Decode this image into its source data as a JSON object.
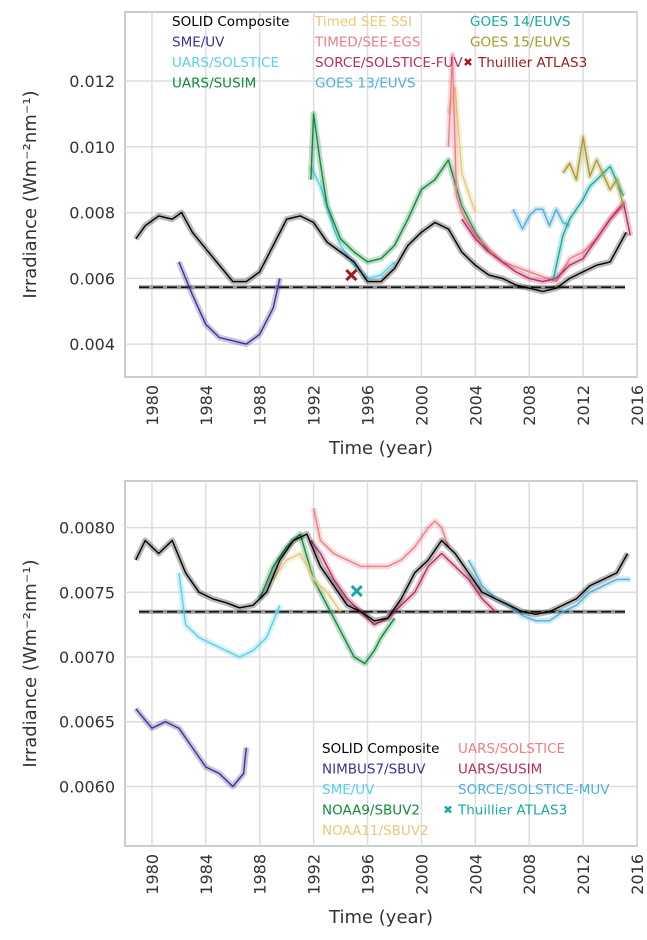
{
  "chart_data": [
    {
      "type": "line",
      "xlabel": "Time (year)",
      "ylabel": "Irradiance (Wm⁻²nm⁻¹)",
      "xlim": [
        1978,
        2016
      ],
      "ylim": [
        0.003,
        0.0141
      ],
      "xticks": [
        1980,
        1984,
        1988,
        1992,
        1996,
        2000,
        2004,
        2008,
        2012,
        2016
      ],
      "yticks": [
        0.004,
        0.006,
        0.008,
        0.01,
        0.012
      ],
      "ytick_labels": [
        "0.004",
        "0.006",
        "0.008",
        "0.010",
        "0.012"
      ],
      "grid": true,
      "legend_placement": "top",
      "reference_line": 0.00573,
      "series": [
        {
          "name": "SOLID Composite",
          "color": "#000000",
          "x": [
            1978.8,
            1979.5,
            1980.5,
            1981.5,
            1982.2,
            1983,
            1984,
            1985,
            1986,
            1987,
            1988,
            1989,
            1990,
            1991,
            1992,
            1993,
            1994,
            1995,
            1996,
            1997,
            1998,
            1999,
            2000,
            2001,
            2002,
            2003,
            2004,
            2005,
            2006,
            2007,
            2008,
            2009,
            2010,
            2011,
            2012,
            2013,
            2014,
            2015.2
          ],
          "values": [
            0.0072,
            0.0076,
            0.0079,
            0.0078,
            0.008,
            0.0074,
            0.0069,
            0.0064,
            0.0059,
            0.0059,
            0.0062,
            0.007,
            0.0078,
            0.0079,
            0.0077,
            0.0071,
            0.0068,
            0.0065,
            0.0059,
            0.0059,
            0.0063,
            0.007,
            0.0074,
            0.0077,
            0.0075,
            0.0068,
            0.0064,
            0.0061,
            0.006,
            0.0058,
            0.0057,
            0.0056,
            0.0057,
            0.006,
            0.0062,
            0.0064,
            0.0065,
            0.0074
          ]
        },
        {
          "name": "SME/UV",
          "color": "#3b3494",
          "x": [
            1982,
            1983,
            1984,
            1985,
            1986,
            1987,
            1988,
            1989,
            1989.5
          ],
          "values": [
            0.0065,
            0.0055,
            0.0046,
            0.0042,
            0.0041,
            0.004,
            0.0043,
            0.0051,
            0.006
          ]
        },
        {
          "name": "UARS/SOLSTICE",
          "color": "#5ad0ec",
          "x": [
            1991.8,
            1992.5,
            1993,
            1993.5,
            1994,
            1995,
            1996,
            1997,
            1998
          ],
          "values": [
            0.0094,
            0.0088,
            0.0082,
            0.0075,
            0.007,
            0.0064,
            0.006,
            0.0061,
            0.0065
          ]
        },
        {
          "name": "UARS/SUSIM",
          "color": "#128a3c",
          "x": [
            1991.8,
            1992,
            1992.5,
            1993,
            1994,
            1995,
            1996,
            1997,
            1998,
            1999,
            2000,
            2001,
            2002,
            2003,
            2004,
            2005
          ],
          "values": [
            0.009,
            0.011,
            0.0095,
            0.0082,
            0.0072,
            0.0068,
            0.0065,
            0.0066,
            0.007,
            0.0078,
            0.0087,
            0.009,
            0.0096,
            0.0082,
            0.0074,
            0.0068
          ]
        },
        {
          "name": "Timed SEE SSI",
          "color": "#e7c97a",
          "x": [
            2002,
            2002.5,
            2003,
            2004
          ],
          "values": [
            0.011,
            0.0118,
            0.0092,
            0.008
          ]
        },
        {
          "name": "TIMED/SEE-EGS",
          "color": "#ee7e86",
          "x": [
            2002,
            2002.3,
            2002.6,
            2003,
            2004,
            2006,
            2008,
            2010,
            2011,
            2012,
            2013,
            2014,
            2015
          ],
          "values": [
            0.01,
            0.0128,
            0.0085,
            0.008,
            0.0073,
            0.0065,
            0.0062,
            0.0059,
            0.0066,
            0.0068,
            0.0072,
            0.0078,
            0.0082
          ]
        },
        {
          "name": "SORCE/SOLSTICE-FUV",
          "color": "#b72d63",
          "x": [
            2003,
            2004,
            2005,
            2006,
            2007,
            2008,
            2009,
            2010,
            2011,
            2012,
            2013,
            2014,
            2015,
            2015.5
          ],
          "values": [
            0.0078,
            0.0072,
            0.0068,
            0.0065,
            0.0062,
            0.006,
            0.0059,
            0.006,
            0.0064,
            0.0066,
            0.0072,
            0.0078,
            0.0083,
            0.0073
          ]
        },
        {
          "name": "GOES 13/EUVS",
          "color": "#4fb0d8",
          "x": [
            2006.8,
            2007.5,
            2008,
            2008.5,
            2009,
            2009.5,
            2010,
            2010.5,
            2011
          ],
          "values": [
            0.0081,
            0.0075,
            0.0079,
            0.0081,
            0.0081,
            0.0076,
            0.0081,
            0.0077,
            0.0076
          ]
        },
        {
          "name": "GOES 14/EUVS",
          "color": "#1aa8a2",
          "x": [
            2009.8,
            2010.5,
            2011,
            2012,
            2012.5,
            2013,
            2014,
            2015
          ],
          "values": [
            0.006,
            0.0073,
            0.0078,
            0.0084,
            0.0088,
            0.009,
            0.0094,
            0.0085
          ]
        },
        {
          "name": "GOES 15/EUVS",
          "color": "#a89a2e",
          "x": [
            2010.5,
            2011,
            2011.5,
            2012,
            2012.5,
            2013,
            2014,
            2014.5,
            2015
          ],
          "values": [
            0.0092,
            0.0095,
            0.009,
            0.0103,
            0.0091,
            0.0096,
            0.0087,
            0.009,
            0.0082
          ]
        },
        {
          "name": "Thuillier ATLAS3",
          "color": "#a01c1c",
          "marker": "x",
          "x": [
            1994.8
          ],
          "values": [
            0.0061
          ]
        }
      ]
    },
    {
      "type": "line",
      "xlabel": "Time (year)",
      "ylabel": "Irradiance (Wm⁻²nm⁻¹)",
      "xlim": [
        1978,
        2016
      ],
      "ylim": [
        0.00554,
        0.00836
      ],
      "xticks": [
        1980,
        1984,
        1988,
        1992,
        1996,
        2000,
        2004,
        2008,
        2012,
        2016
      ],
      "yticks": [
        0.006,
        0.0065,
        0.007,
        0.0075,
        0.008
      ],
      "ytick_labels": [
        "0.0060",
        "0.0065",
        "0.0070",
        "0.0075",
        "0.0080"
      ],
      "grid": true,
      "legend_placement": "bottom-right",
      "reference_line": 0.00735,
      "series": [
        {
          "name": "SOLID Composite",
          "color": "#000000",
          "x": [
            1978.8,
            1979.5,
            1980.5,
            1981.5,
            1982.5,
            1983.5,
            1984.5,
            1985.5,
            1986.5,
            1987.5,
            1988.5,
            1989.5,
            1990.5,
            1991.5,
            1992.5,
            1993.5,
            1994.5,
            1995.5,
            1996.5,
            1997.5,
            1998.5,
            1999.5,
            2000.5,
            2001.5,
            2002.5,
            2003.5,
            2004.5,
            2005.5,
            2006.5,
            2007.5,
            2008.5,
            2009.5,
            2010.5,
            2011.5,
            2012.5,
            2013.5,
            2014.5,
            2015.3
          ],
          "values": [
            0.00775,
            0.0079,
            0.0078,
            0.0079,
            0.00765,
            0.0075,
            0.00745,
            0.00742,
            0.00738,
            0.0074,
            0.0075,
            0.00775,
            0.0079,
            0.00795,
            0.0077,
            0.00755,
            0.0074,
            0.00735,
            0.00728,
            0.0073,
            0.00745,
            0.00765,
            0.00775,
            0.0079,
            0.0078,
            0.00765,
            0.0075,
            0.00745,
            0.0074,
            0.00735,
            0.00733,
            0.00735,
            0.0074,
            0.00745,
            0.00755,
            0.0076,
            0.00765,
            0.0078
          ]
        },
        {
          "name": "NIMBUS7/SBUV",
          "color": "#3b3494",
          "x": [
            1978.8,
            1980,
            1981,
            1982,
            1983,
            1984,
            1985,
            1986,
            1986.8,
            1987
          ],
          "values": [
            0.0066,
            0.00645,
            0.0065,
            0.00645,
            0.0063,
            0.00615,
            0.0061,
            0.006,
            0.0061,
            0.0063
          ]
        },
        {
          "name": "SME/UV",
          "color": "#5ad0ec",
          "x": [
            1982,
            1982.5,
            1983.5,
            1984.5,
            1985.5,
            1986.5,
            1987.5,
            1988.5,
            1989.5
          ],
          "values": [
            0.00765,
            0.00725,
            0.00715,
            0.0071,
            0.00705,
            0.007,
            0.00705,
            0.00715,
            0.0074
          ]
        },
        {
          "name": "NOAA9/SBUV2",
          "color": "#128a3c",
          "x": [
            1988,
            1989,
            1990,
            1991,
            1992,
            1993,
            1994,
            1995,
            1995.8,
            1996.5,
            1997,
            1998
          ],
          "values": [
            0.00745,
            0.0077,
            0.00785,
            0.00795,
            0.0076,
            0.0074,
            0.0072,
            0.007,
            0.00695,
            0.00705,
            0.00715,
            0.0073
          ]
        },
        {
          "name": "NOAA11/SBUV2",
          "color": "#e7c97a",
          "x": [
            1989,
            1990,
            1991,
            1992,
            1993,
            1994
          ],
          "values": [
            0.0076,
            0.00775,
            0.0078,
            0.0076,
            0.0075,
            0.00735
          ]
        },
        {
          "name": "UARS/SOLSTICE",
          "color": "#ee7e86",
          "x": [
            1992,
            1992.5,
            1993.5,
            1994.5,
            1995.5,
            1996.5,
            1997.5,
            1998.5,
            1999.5,
            2000.5,
            2001,
            2001.5,
            2002
          ],
          "values": [
            0.00815,
            0.0079,
            0.0078,
            0.00775,
            0.0077,
            0.0077,
            0.0077,
            0.00775,
            0.00785,
            0.008,
            0.00805,
            0.008,
            0.00785
          ]
        },
        {
          "name": "UARS/SUSIM",
          "color": "#b72d63",
          "x": [
            1991.8,
            1992.5,
            1993.5,
            1994.5,
            1995.5,
            1996.5,
            1997.5,
            1998.5,
            1999.5,
            2000.5,
            2001.5,
            2002.5,
            2003.5,
            2004.5,
            2005.5
          ],
          "values": [
            0.0079,
            0.0078,
            0.0076,
            0.00745,
            0.00735,
            0.00725,
            0.0073,
            0.0074,
            0.0075,
            0.0077,
            0.0078,
            0.0077,
            0.0076,
            0.00745,
            0.00735
          ]
        },
        {
          "name": "SORCE/SOLSTICE-MUV",
          "color": "#4fb0d8",
          "x": [
            2003.5,
            2004.5,
            2005.5,
            2006.5,
            2007.5,
            2008.5,
            2009.5,
            2010.5,
            2011.5,
            2012.5,
            2013.5,
            2014.5,
            2015.5
          ],
          "values": [
            0.00775,
            0.00755,
            0.00745,
            0.0074,
            0.00732,
            0.00728,
            0.00728,
            0.00735,
            0.0074,
            0.0075,
            0.00755,
            0.0076,
            0.0076
          ]
        },
        {
          "name": "Thuillier ATLAS3",
          "color": "#1aa8a2",
          "marker": "x",
          "x": [
            1995.2
          ],
          "values": [
            0.00751
          ]
        }
      ]
    }
  ]
}
